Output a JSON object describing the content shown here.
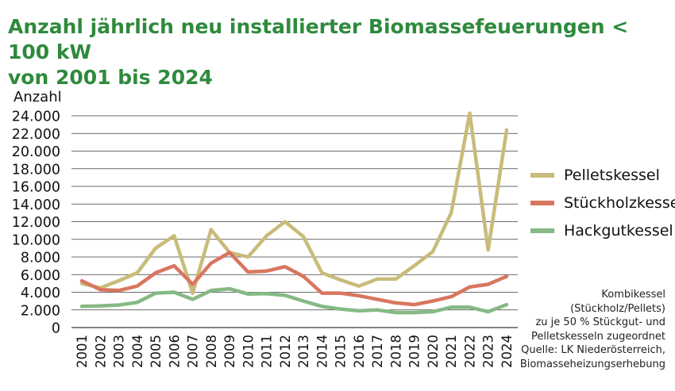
{
  "title_lines": [
    "Anzahl jährlich neu installierter Biomassefeuerungen < 100 kW",
    "von 2001 bis 2024"
  ],
  "note_lines": [
    "Kombikessel",
    "(Stückholz/Pellets)",
    "zu je 50 % Stückgut- und",
    "Pelletskesseln zugeordnet",
    "Quelle: LK Niederösterreich,",
    "Biomasseheizungserhebung"
  ],
  "chart_data": {
    "type": "line",
    "ylabel": "Anzahl",
    "xlabel": "",
    "ylim": [
      0,
      24000
    ],
    "grid": true,
    "legend_position": "right",
    "y_ticks": [
      "0",
      "2.000",
      "4.000",
      "6.000",
      "8.000",
      "10.000",
      "12.000",
      "14.000",
      "16.000",
      "18.000",
      "20.000",
      "22.000",
      "24.000"
    ],
    "x": [
      "2001",
      "2002",
      "2003",
      "2004",
      "2005",
      "2006",
      "2007",
      "2008",
      "2009",
      "2010",
      "2011",
      "2012",
      "2013",
      "2014",
      "2015",
      "2016",
      "2017",
      "2018",
      "2019",
      "2020",
      "2021",
      "2022",
      "2023",
      "2024"
    ],
    "series": [
      {
        "name": "Pelletskessel",
        "color": "#c9bc7a",
        "values": [
          5000,
          4500,
          5300,
          6200,
          9000,
          10400,
          3900,
          11100,
          8500,
          8000,
          10400,
          12000,
          10300,
          6200,
          5400,
          4700,
          5500,
          5500,
          7000,
          8600,
          13000,
          24300,
          8800,
          22400
        ]
      },
      {
        "name": "Stückholzkessel",
        "color": "#d9765f",
        "values": [
          5300,
          4300,
          4200,
          4700,
          6200,
          7000,
          4900,
          7300,
          8500,
          6300,
          6400,
          6900,
          5800,
          3900,
          3900,
          3600,
          3200,
          2800,
          2600,
          3000,
          3500,
          4600,
          4900,
          5800
        ]
      },
      {
        "name": "Hackgutkessel",
        "color": "#86b984",
        "values": [
          2400,
          2450,
          2550,
          2850,
          3900,
          4000,
          3200,
          4200,
          4400,
          3800,
          3850,
          3650,
          3000,
          2400,
          2100,
          1900,
          2000,
          1700,
          1700,
          1800,
          2300,
          2300,
          1800,
          2600
        ]
      }
    ]
  }
}
